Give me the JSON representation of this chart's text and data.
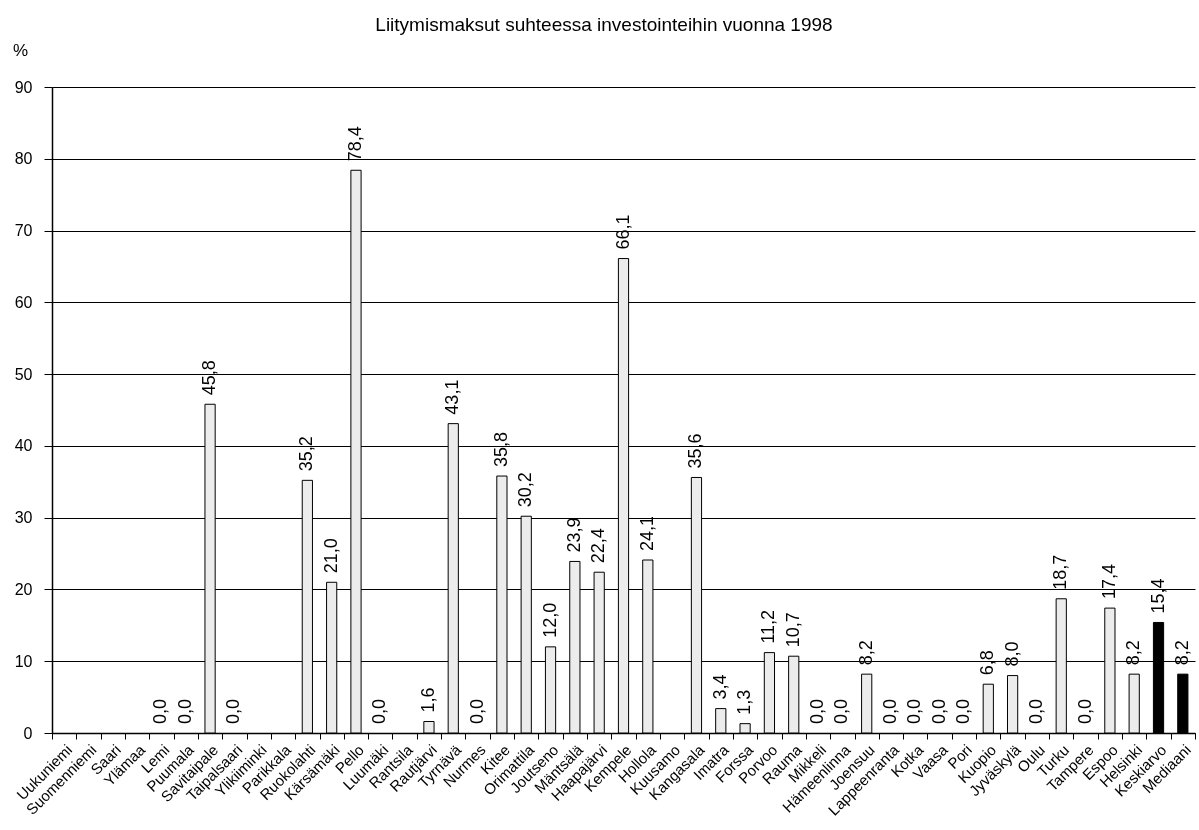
{
  "chart_data": {
    "type": "bar",
    "title": "Liitymismaksut suhteessa investointeihin vuonna 1998",
    "ylabel": "%",
    "categories": [
      "Uukuniemi",
      "Suomenniemi",
      "Saari",
      "Ylämaa",
      "Lemi",
      "Puumala",
      "Savitaipale",
      "Taipalsaari",
      "Ylikiiminki",
      "Parikkala",
      "Ruokolahti",
      "Kärsämäki",
      "Pello",
      "Luumäki",
      "Rantsila",
      "Rautjärvi",
      "Tyrnävä",
      "Nurmes",
      "Kitee",
      "Orimattila",
      "Joutseno",
      "Mäntsälä",
      "Haapajärvi",
      "Kempele",
      "Hollola",
      "Kuusamo",
      "Kangasala",
      "Imatra",
      "Forssa",
      "Porvoo",
      "Rauma",
      "Mikkeli",
      "Hämeenlinna",
      "Joensuu",
      "Lappeenranta",
      "Kotka",
      "Vaasa",
      "Pori",
      "Kuopio",
      "Jyväskylä",
      "Oulu",
      "Turku",
      "Tampere",
      "Espoo",
      "Helsinki",
      "Keskiarvo",
      "Mediaani"
    ],
    "values": [
      null,
      null,
      null,
      null,
      0,
      0,
      45.8,
      0,
      null,
      null,
      35.2,
      21.0,
      78.4,
      0,
      null,
      1.6,
      43.1,
      0,
      35.8,
      30.2,
      12.0,
      23.9,
      22.4,
      66.1,
      24.1,
      null,
      35.6,
      3.4,
      1.3,
      11.2,
      10.7,
      0,
      0,
      8.2,
      0,
      0,
      0,
      0,
      6.8,
      8.0,
      0,
      18.7,
      0,
      17.4,
      8.2,
      15.4,
      8.2
    ],
    "value_labels": [
      null,
      null,
      null,
      null,
      "0,0",
      "0,0",
      "45,8",
      "0,0",
      null,
      null,
      "35,2",
      "21,0",
      "78,4",
      "0,0",
      null,
      "1,6",
      "43,1",
      "0,0",
      "35,8",
      "30,2",
      "12,0",
      "23,9",
      "22,4",
      "66,1",
      "24,1",
      null,
      "35,6",
      "3,4",
      "1,3",
      "11,2",
      "10,7",
      "0,0",
      "0,0",
      "8,2",
      "0,0",
      "0,0",
      "0,0",
      "0,0",
      "6,8",
      "8,0",
      "0,0",
      "18,7",
      "0,0",
      "17,4",
      "8,2",
      "15,4",
      "8,2"
    ],
    "colors": [
      "#ececec",
      "#ececec",
      "#ececec",
      "#ececec",
      "#ececec",
      "#ececec",
      "#ececec",
      "#ececec",
      "#ececec",
      "#ececec",
      "#ececec",
      "#ececec",
      "#ececec",
      "#ececec",
      "#ececec",
      "#ececec",
      "#ececec",
      "#ececec",
      "#ececec",
      "#ececec",
      "#ececec",
      "#ececec",
      "#ececec",
      "#ececec",
      "#ececec",
      "#ececec",
      "#ececec",
      "#ececec",
      "#ececec",
      "#ececec",
      "#ececec",
      "#ececec",
      "#ececec",
      "#ececec",
      "#ececec",
      "#ececec",
      "#ececec",
      "#ececec",
      "#ececec",
      "#ececec",
      "#ececec",
      "#ececec",
      "#ececec",
      "#ececec",
      "#ececec",
      "#000000",
      "#000000"
    ],
    "ylim": [
      0,
      90
    ],
    "yticks": [
      0,
      10,
      20,
      30,
      40,
      50,
      60,
      70,
      80,
      90
    ],
    "grid": "y"
  }
}
